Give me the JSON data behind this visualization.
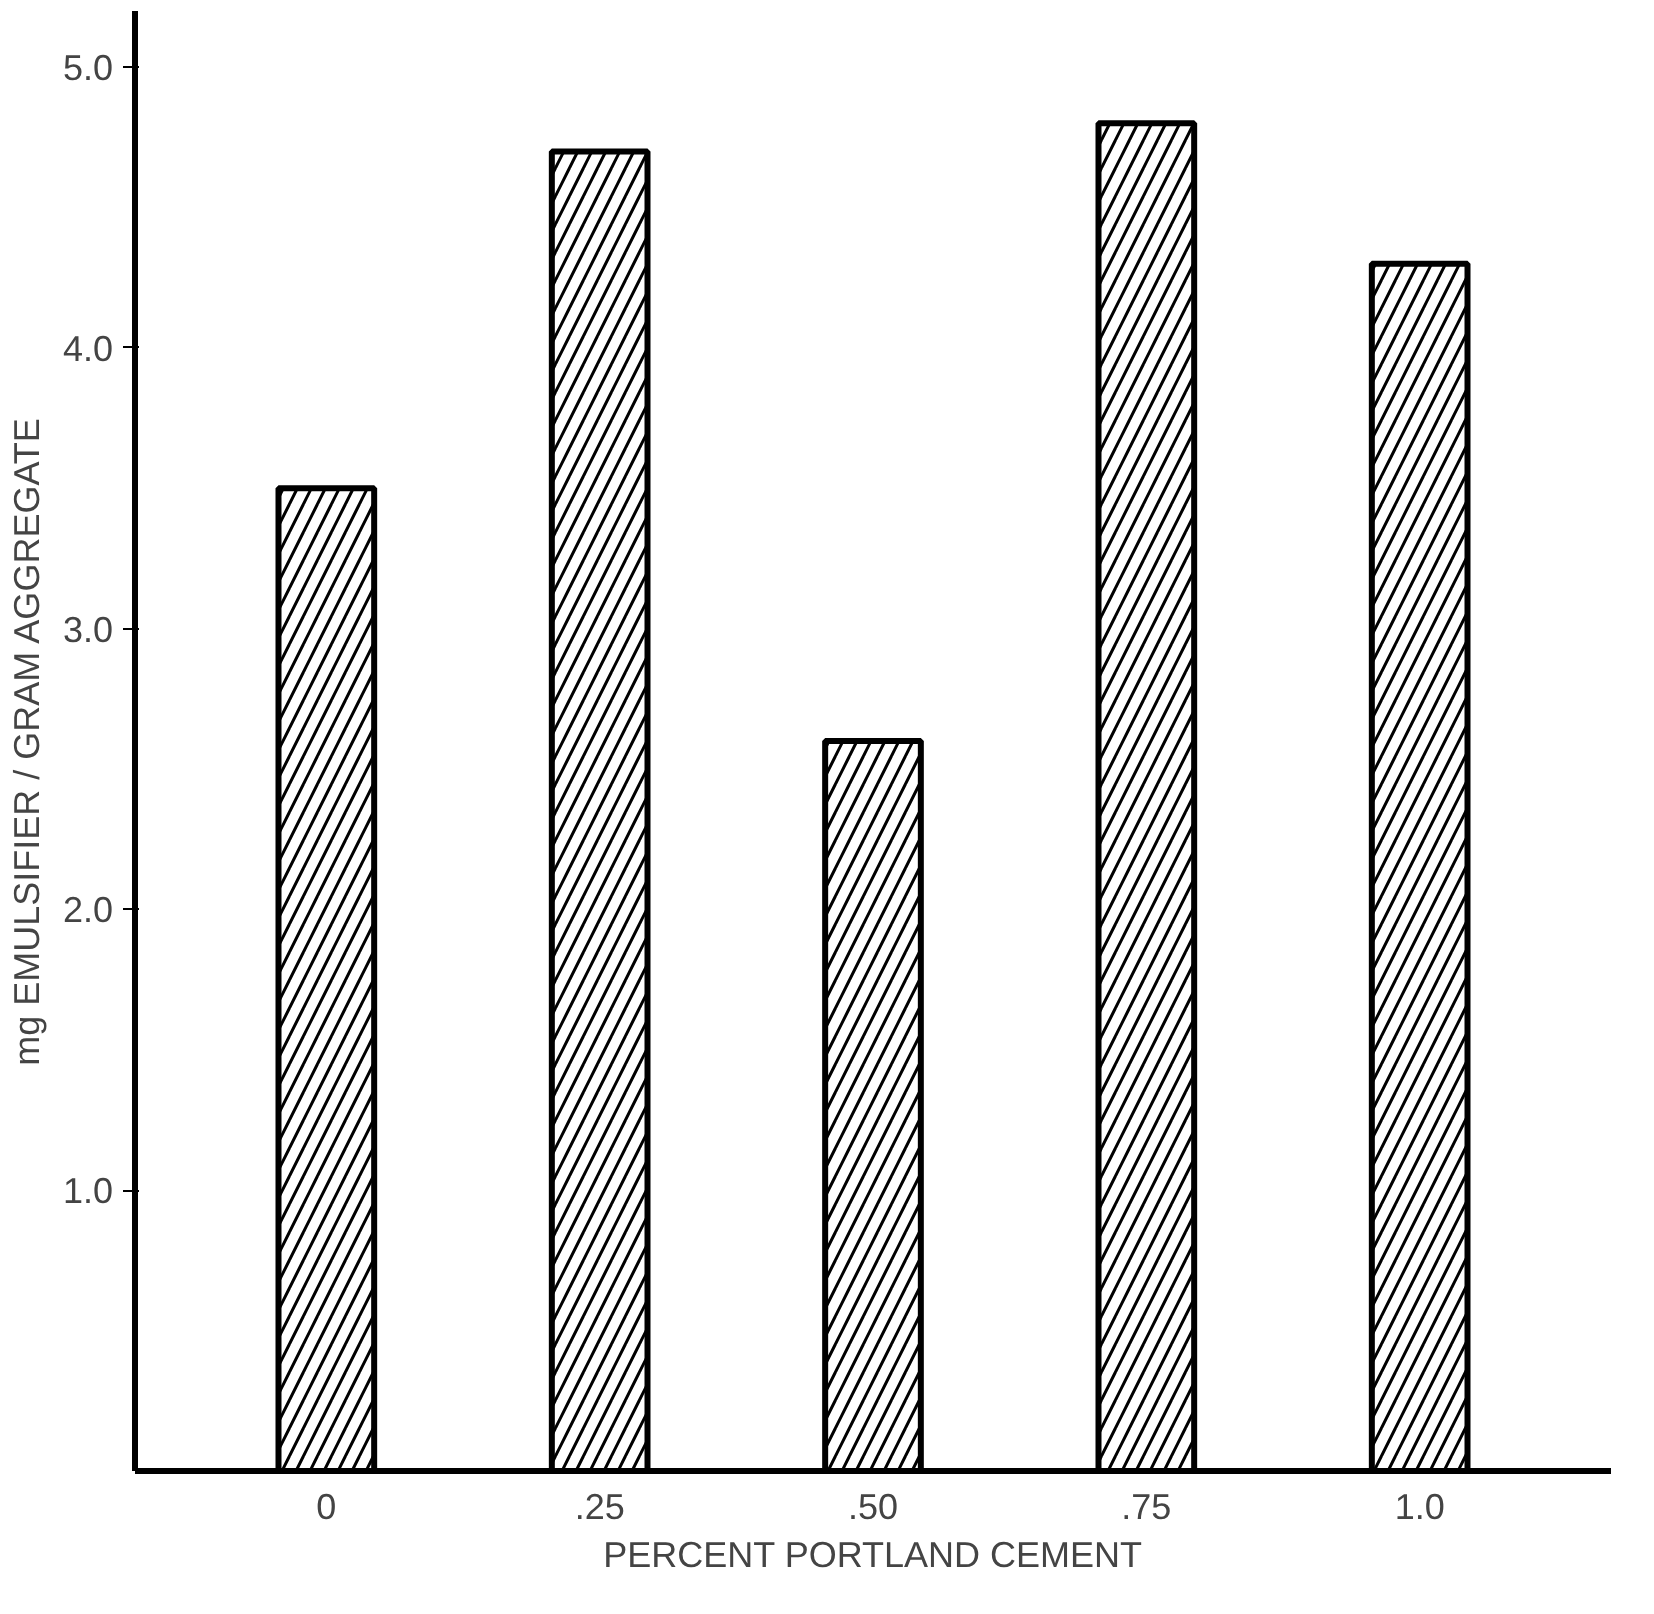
{
  "chart_data": {
    "type": "bar",
    "xlabel": "PERCENT PORTLAND CEMENT",
    "ylabel": "mg EMULSIFIER / GRAM AGGREGATE",
    "categories": [
      "0",
      ".25",
      ".50",
      ".75",
      "1.0"
    ],
    "values": [
      3.5,
      4.7,
      2.6,
      4.8,
      4.3
    ],
    "color": "#ffffff",
    "ylim": [
      0,
      5.2
    ],
    "yticks": [
      {
        "value": 1,
        "label": "1.0"
      },
      {
        "value": 2,
        "label": "2.0"
      },
      {
        "value": 3,
        "label": "3.0"
      },
      {
        "value": 4,
        "label": "4.0"
      },
      {
        "value": 5,
        "label": "5.0"
      }
    ],
    "grid": false
  }
}
